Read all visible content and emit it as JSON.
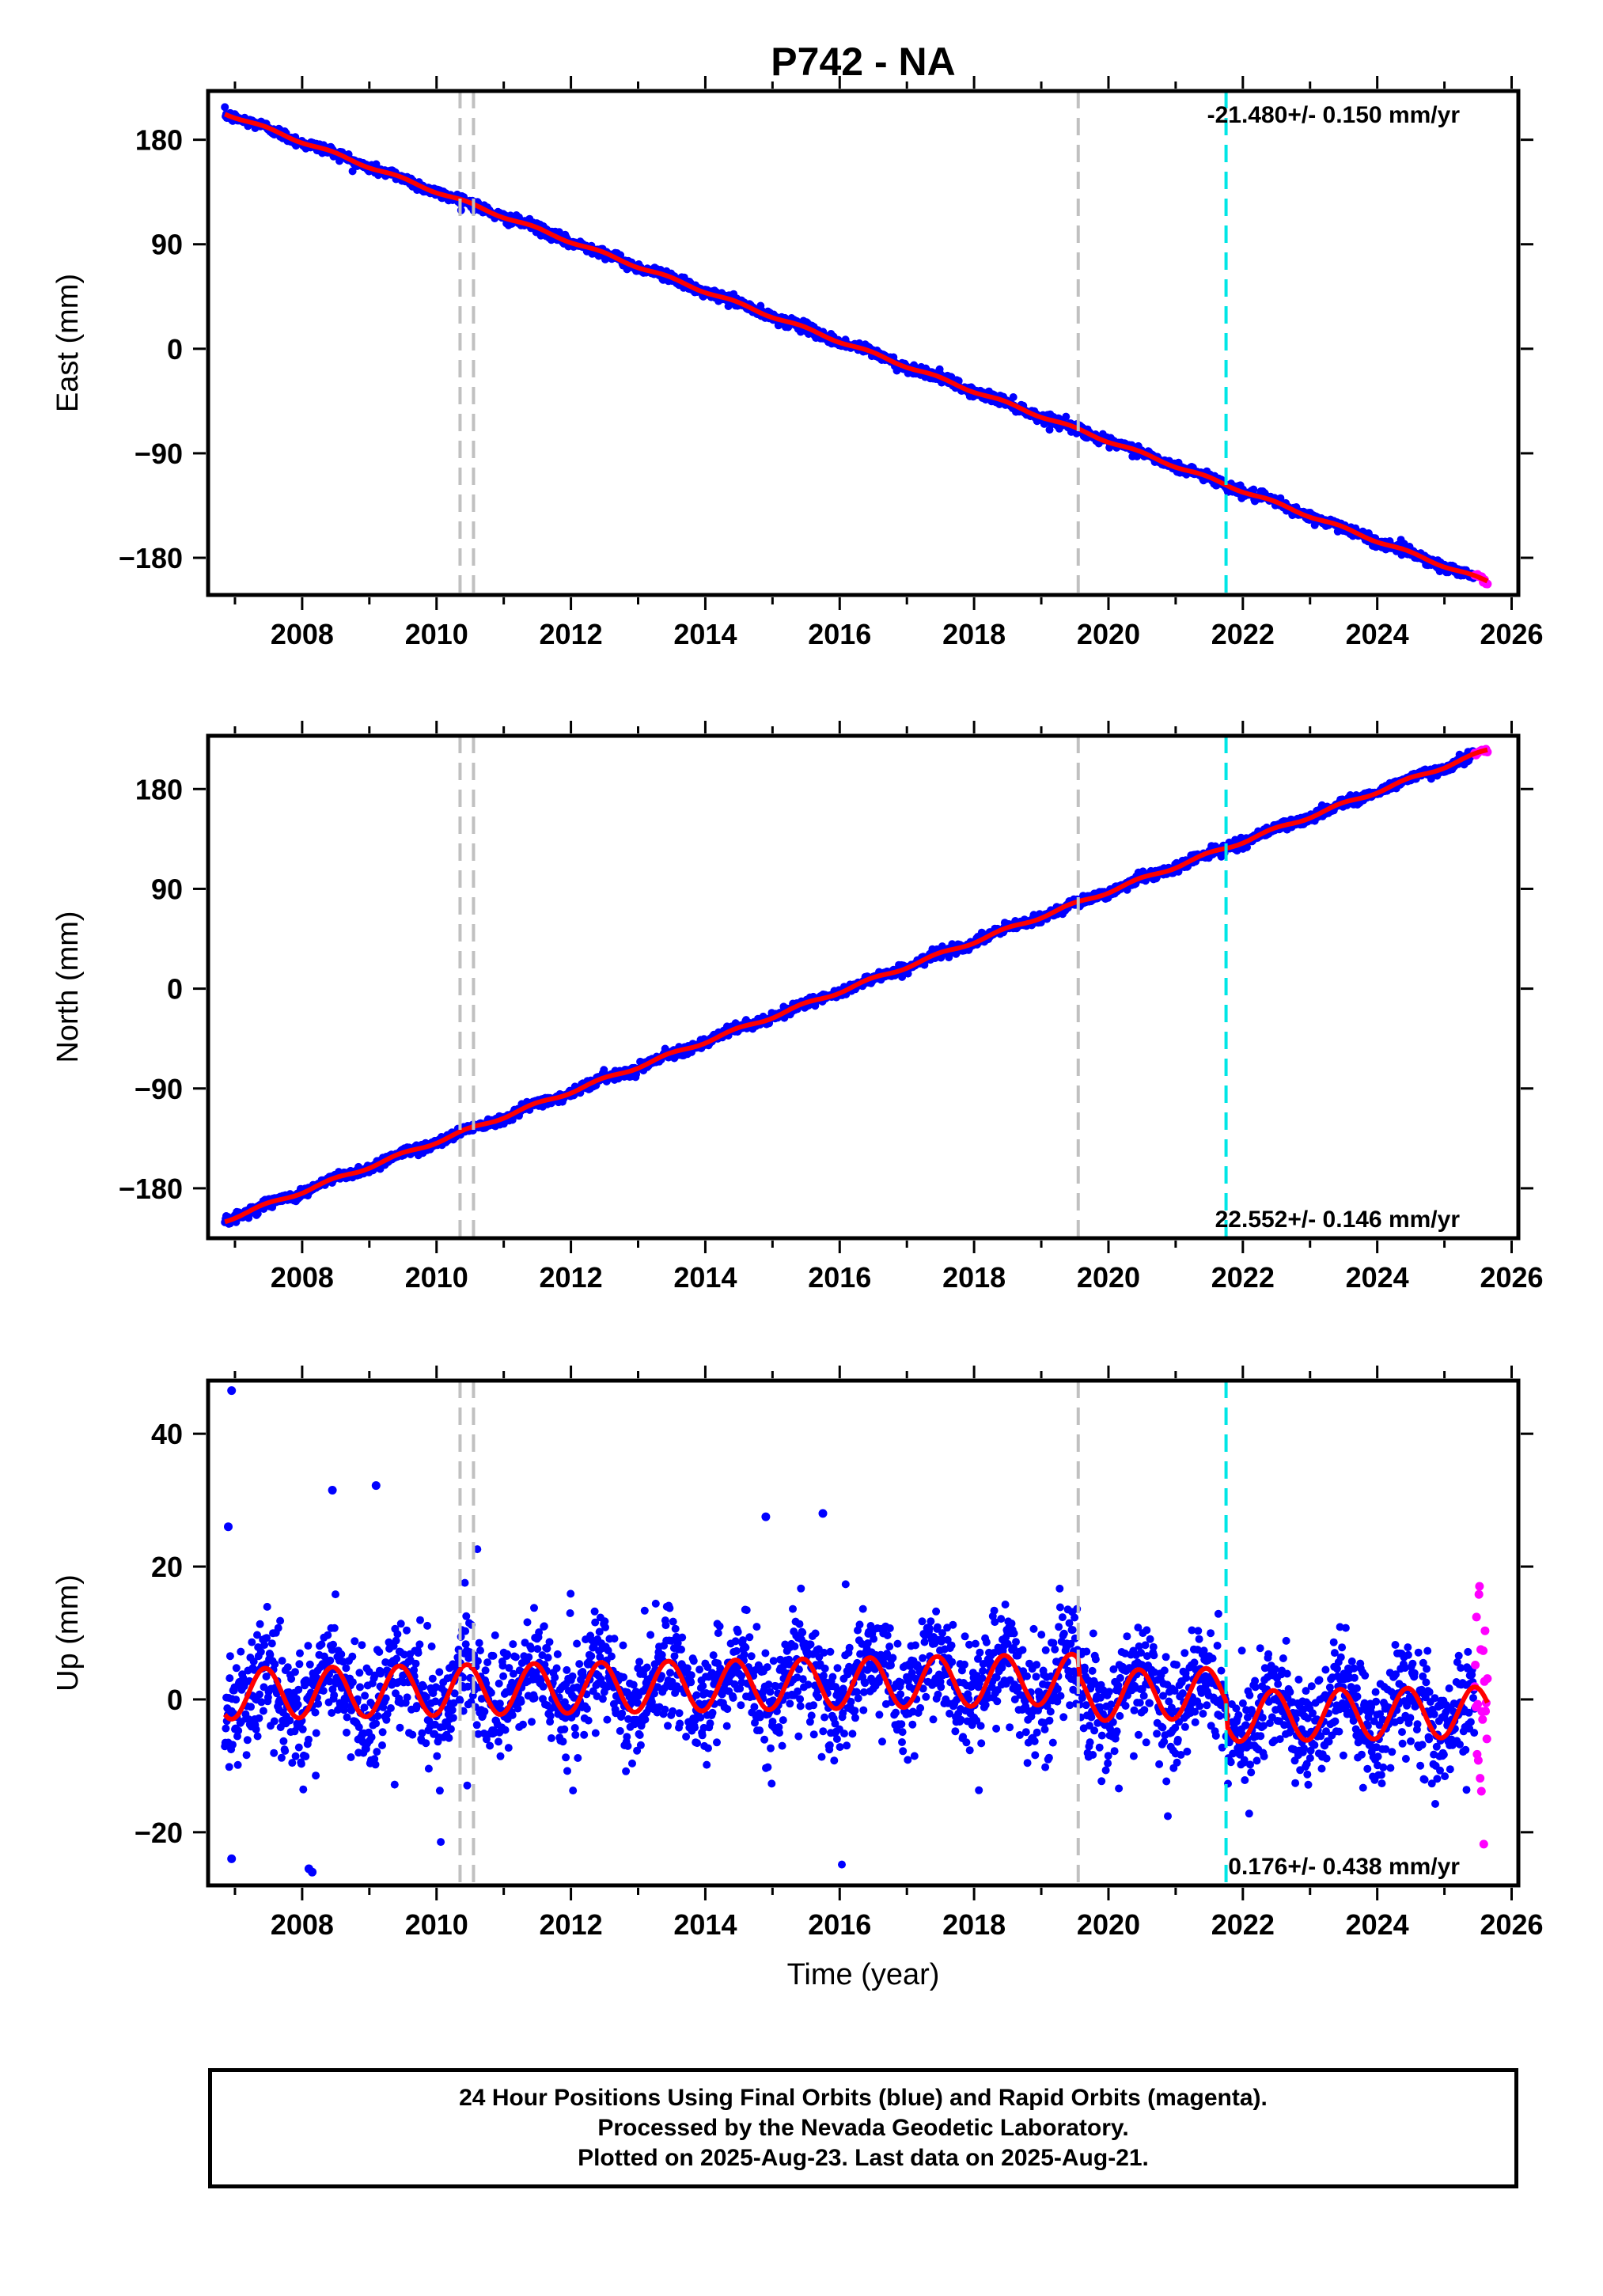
{
  "figure": {
    "title": "P742 - NA",
    "xlabel": "Time (year)",
    "caption": [
      "24 Hour Positions Using Final Orbits (blue) and Rapid Orbits (magenta).",
      "Processed by the Nevada Geodetic Laboratory.",
      "Plotted on 2025-Aug-23. Last data on 2025-Aug-21."
    ]
  },
  "colors": {
    "final_orbits": "#0000ff",
    "rapid_orbits": "#ff00ff",
    "model_fit": "#ff0000",
    "equipment_change": "#c0c0c0",
    "earthquake": "#00e6e6"
  },
  "chart_data": [
    {
      "type": "scatter",
      "panel": "east",
      "ylabel": "East (mm)",
      "rate_label": "-21.480+/- 0.150 mm/yr",
      "rate_label_position": "top-right",
      "xlim": [
        2006.6,
        2026.1
      ],
      "ylim": [
        -212,
        222
      ],
      "xticks": [
        2008,
        2010,
        2012,
        2014,
        2016,
        2018,
        2020,
        2022,
        2024,
        2026
      ],
      "yticks": [
        180,
        90,
        0,
        -90,
        -180
      ],
      "ytick_labels": [
        "180",
        "90",
        "0",
        "−90",
        "−180"
      ],
      "data_range": [
        2006.85,
        2025.64
      ],
      "rapid_start": 2025.45,
      "trend": {
        "start_value": 203,
        "slope": -21.48,
        "seasonal_amplitude": 1.2,
        "noise": 2.2
      },
      "equipment_change_lines": [
        2010.35,
        2010.55,
        2019.55
      ],
      "earthquake_lines": [
        2021.75
      ]
    },
    {
      "type": "scatter",
      "panel": "north",
      "ylabel": "North (mm)",
      "rate_label": "22.552+/- 0.146 mm/yr",
      "rate_label_position": "bottom-right",
      "xlim": [
        2006.6,
        2026.1
      ],
      "ylim": [
        -225,
        228
      ],
      "xticks": [
        2008,
        2010,
        2012,
        2014,
        2016,
        2018,
        2020,
        2022,
        2024,
        2026
      ],
      "yticks": [
        180,
        90,
        0,
        -90,
        -180
      ],
      "ytick_labels": [
        "180",
        "90",
        "0",
        "−90",
        "−180"
      ],
      "data_range": [
        2006.85,
        2025.64
      ],
      "rapid_start": 2025.45,
      "trend": {
        "start_value": -209,
        "slope": 22.552,
        "seasonal_amplitude": 1.5,
        "noise": 2.2
      },
      "equipment_change_lines": [
        2010.35,
        2010.55,
        2019.55
      ],
      "earthquake_lines": [
        2021.75
      ]
    },
    {
      "type": "scatter",
      "panel": "up",
      "ylabel": "Up (mm)",
      "rate_label": "0.176+/- 0.438 mm/yr",
      "rate_label_position": "bottom-right",
      "xlim": [
        2006.6,
        2026.1
      ],
      "ylim": [
        -28,
        48
      ],
      "xticks": [
        2008,
        2010,
        2012,
        2014,
        2016,
        2018,
        2020,
        2022,
        2024,
        2026
      ],
      "yticks": [
        40,
        20,
        0,
        -20
      ],
      "ytick_labels": [
        "40",
        "20",
        "0",
        "−20"
      ],
      "data_range": [
        2006.85,
        2025.64
      ],
      "rapid_start": 2025.45,
      "trend": {
        "start_value": 0.8,
        "slope": 0.176,
        "seasonal_amplitude": 3.8,
        "noise": 4.0
      },
      "offsets": [
        {
          "year": 2019.55,
          "value": -2.5
        },
        {
          "year": 2021.75,
          "value": -3.5
        }
      ],
      "outliers": [
        [
          2006.95,
          46.5
        ],
        [
          2008.45,
          31.5
        ],
        [
          2009.1,
          32.2
        ],
        [
          2014.9,
          27.5
        ],
        [
          2015.75,
          28
        ],
        [
          2006.9,
          26
        ],
        [
          2008.1,
          -25.5
        ],
        [
          2008.15,
          -26
        ],
        [
          2006.95,
          -24
        ]
      ],
      "equipment_change_lines": [
        2010.35,
        2010.55,
        2019.55
      ],
      "earthquake_lines": [
        2021.75
      ]
    }
  ]
}
